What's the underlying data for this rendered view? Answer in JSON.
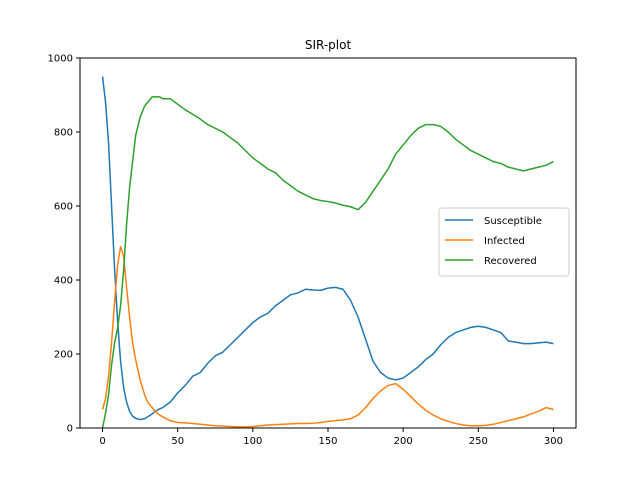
{
  "chart_data": {
    "type": "line",
    "title": "SIR-plot",
    "xlabel": "",
    "ylabel": "",
    "xlim": [
      -15,
      315
    ],
    "ylim": [
      0,
      1000
    ],
    "xticks": [
      0,
      50,
      100,
      150,
      200,
      250,
      300
    ],
    "yticks": [
      0,
      200,
      400,
      600,
      800,
      1000
    ],
    "grid": false,
    "legend_position": "center-right",
    "series": [
      {
        "name": "Susceptible",
        "color": "#1f77b4",
        "x": [
          0,
          2,
          4,
          6,
          8,
          10,
          12,
          14,
          16,
          18,
          20,
          22,
          25,
          28,
          30,
          33,
          35,
          38,
          40,
          45,
          50,
          55,
          60,
          65,
          70,
          75,
          80,
          85,
          90,
          95,
          100,
          105,
          110,
          115,
          120,
          125,
          130,
          135,
          140,
          145,
          150,
          155,
          160,
          165,
          170,
          175,
          180,
          185,
          190,
          195,
          200,
          205,
          210,
          215,
          220,
          225,
          230,
          235,
          240,
          245,
          250,
          255,
          260,
          265,
          270,
          275,
          280,
          285,
          290,
          295,
          300
        ],
        "values": [
          950,
          880,
          770,
          600,
          430,
          290,
          180,
          110,
          70,
          45,
          32,
          26,
          23,
          25,
          30,
          38,
          45,
          52,
          55,
          70,
          95,
          115,
          140,
          150,
          175,
          195,
          205,
          225,
          245,
          265,
          285,
          300,
          310,
          330,
          345,
          360,
          365,
          375,
          373,
          372,
          378,
          380,
          375,
          345,
          300,
          240,
          180,
          150,
          135,
          130,
          135,
          150,
          165,
          185,
          200,
          225,
          245,
          258,
          265,
          272,
          275,
          272,
          265,
          258,
          235,
          232,
          228,
          228,
          230,
          232,
          228
        ]
      },
      {
        "name": "Infected",
        "color": "#ff7f0e",
        "x": [
          0,
          2,
          4,
          6,
          8,
          10,
          12,
          14,
          16,
          18,
          20,
          22,
          25,
          28,
          30,
          33,
          35,
          38,
          40,
          45,
          50,
          55,
          60,
          65,
          70,
          75,
          80,
          85,
          90,
          95,
          100,
          105,
          110,
          115,
          120,
          125,
          130,
          135,
          140,
          145,
          150,
          155,
          160,
          165,
          170,
          175,
          180,
          185,
          190,
          195,
          200,
          205,
          210,
          215,
          220,
          225,
          230,
          235,
          240,
          245,
          250,
          255,
          260,
          265,
          270,
          275,
          280,
          285,
          290,
          295,
          300
        ],
        "values": [
          50,
          80,
          140,
          230,
          340,
          440,
          490,
          465,
          380,
          300,
          230,
          185,
          130,
          90,
          70,
          55,
          45,
          35,
          30,
          20,
          15,
          14,
          12,
          10,
          8,
          6,
          5,
          4,
          3,
          3,
          4,
          6,
          8,
          9,
          10,
          11,
          12,
          12,
          13,
          15,
          18,
          20,
          22,
          25,
          35,
          55,
          80,
          100,
          115,
          120,
          105,
          85,
          65,
          48,
          35,
          25,
          18,
          12,
          8,
          6,
          6,
          7,
          10,
          15,
          20,
          25,
          30,
          38,
          45,
          55,
          50
        ]
      },
      {
        "name": "Recovered",
        "color": "#2ca02c",
        "x": [
          0,
          2,
          4,
          6,
          8,
          10,
          12,
          14,
          16,
          18,
          20,
          22,
          25,
          28,
          30,
          33,
          35,
          38,
          40,
          45,
          50,
          55,
          60,
          65,
          70,
          75,
          80,
          85,
          90,
          95,
          100,
          105,
          110,
          115,
          120,
          125,
          130,
          135,
          140,
          145,
          150,
          155,
          160,
          165,
          170,
          175,
          180,
          185,
          190,
          195,
          200,
          205,
          210,
          215,
          220,
          225,
          230,
          235,
          240,
          245,
          250,
          255,
          260,
          265,
          270,
          275,
          280,
          285,
          290,
          295,
          300
        ],
        "values": [
          0,
          40,
          90,
          170,
          230,
          270,
          330,
          425,
          550,
          650,
          720,
          790,
          840,
          870,
          880,
          895,
          895,
          895,
          890,
          890,
          875,
          860,
          848,
          835,
          820,
          810,
          800,
          785,
          770,
          750,
          730,
          715,
          700,
          690,
          670,
          655,
          640,
          630,
          620,
          615,
          612,
          608,
          602,
          598,
          590,
          610,
          640,
          670,
          700,
          740,
          765,
          790,
          810,
          820,
          820,
          815,
          800,
          780,
          765,
          750,
          740,
          730,
          720,
          715,
          705,
          700,
          695,
          700,
          705,
          710,
          720
        ]
      }
    ]
  }
}
